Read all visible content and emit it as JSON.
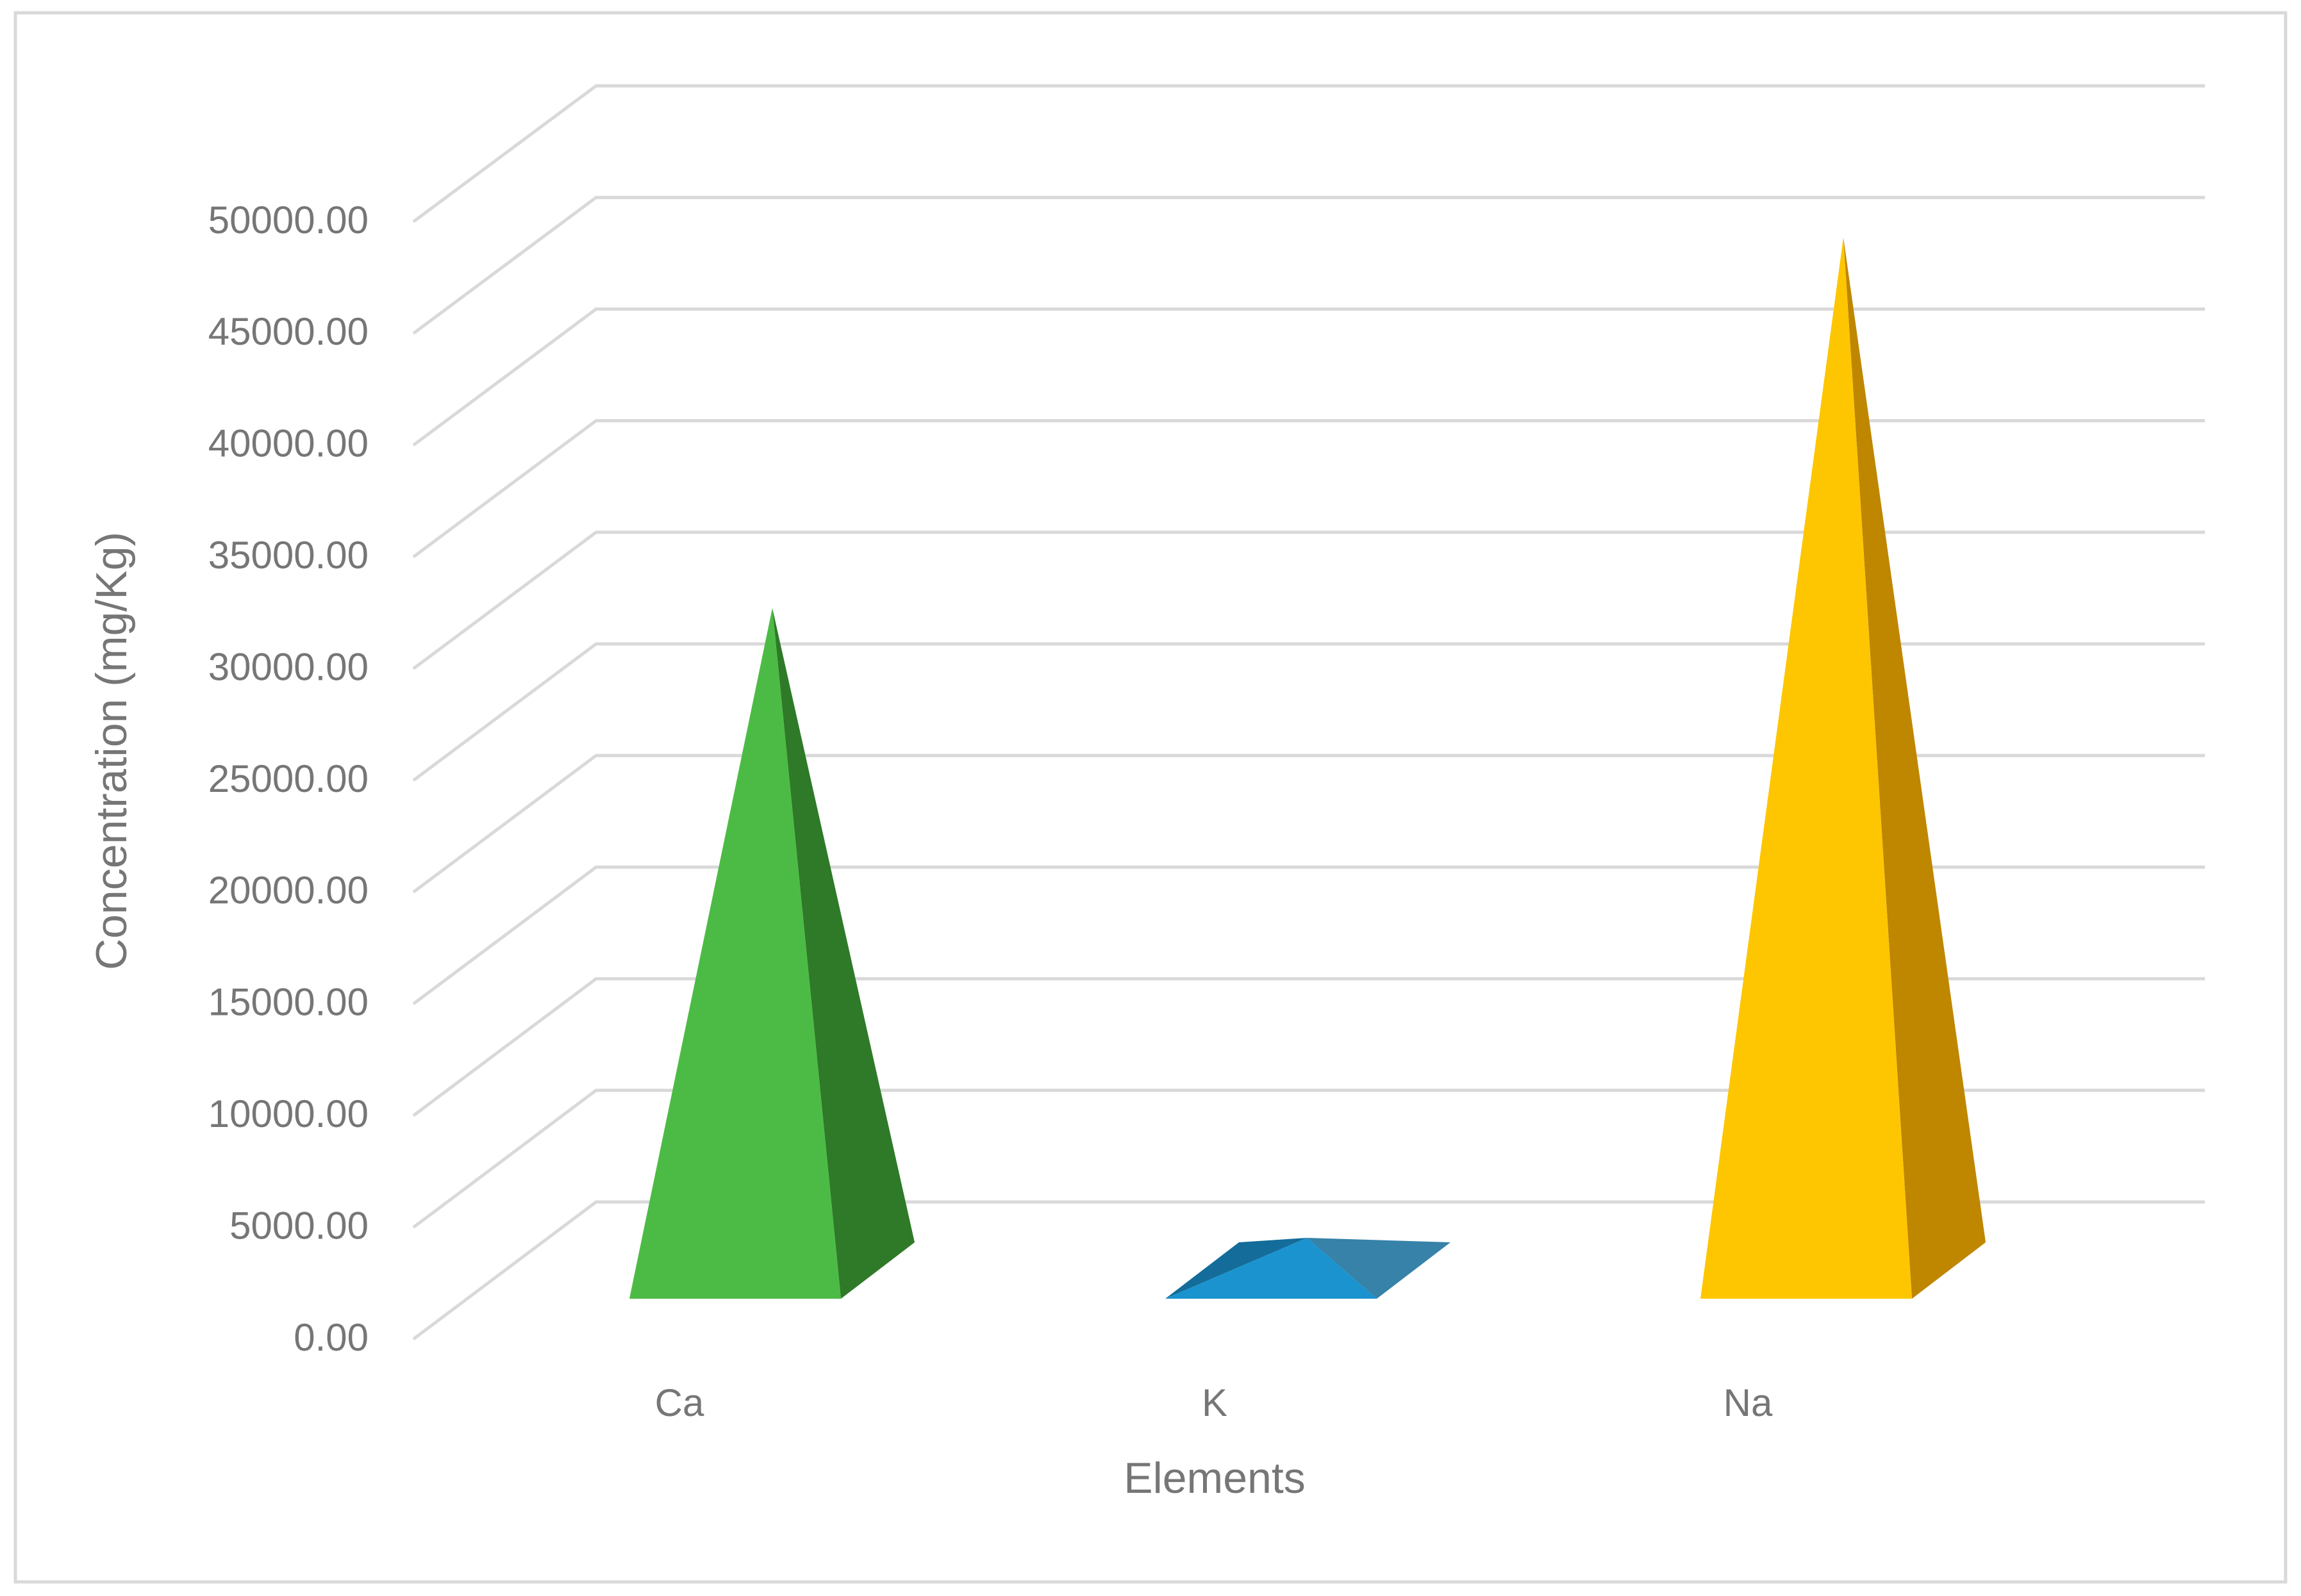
{
  "chart_data": {
    "type": "bar",
    "style": "3d-pyramid",
    "categories": [
      "Ca",
      "K",
      "Na"
    ],
    "series": [
      {
        "values": [
          29500,
          600,
          46000
        ]
      }
    ],
    "xlabel": "Elements",
    "ylabel": "Concentration (mg/Kg)",
    "ylim": [
      0,
      50000
    ],
    "yticks": [
      "0.00",
      "5000.00",
      "10000.00",
      "15000.00",
      "20000.00",
      "25000.00",
      "30000.00",
      "35000.00",
      "40000.00",
      "45000.00",
      "50000.00"
    ],
    "grid": true,
    "legend": "none",
    "colors": {
      "Ca": {
        "front": "#4cbb45",
        "side": "#2e7a28"
      },
      "K": {
        "front": "#1a93cf",
        "side": "#136c99"
      },
      "Na": {
        "front": "#fdc600",
        "side": "#bf8600"
      },
      "grid": "#d9d9d9",
      "text": "#767676",
      "border": "#d9d9d9"
    }
  }
}
